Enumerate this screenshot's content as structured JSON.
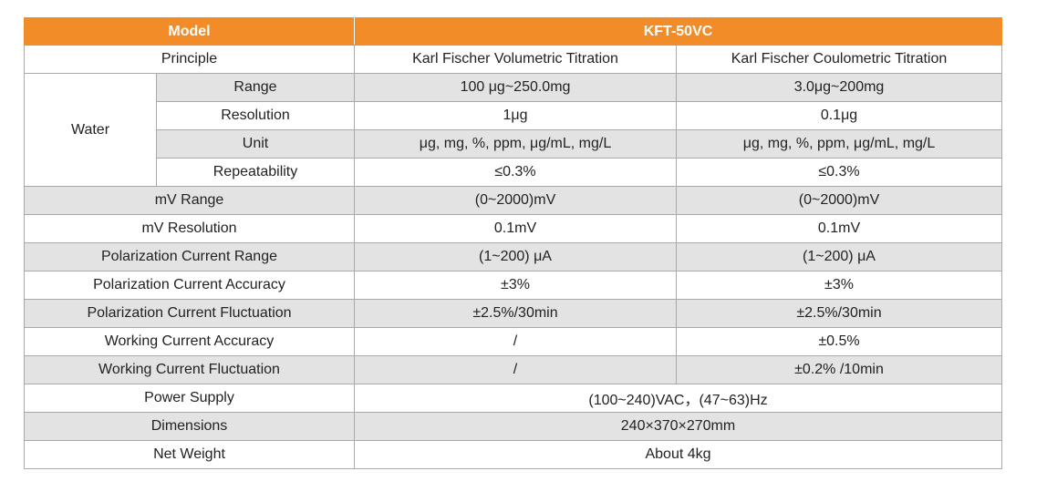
{
  "header": {
    "model_label": "Model",
    "model_value": "KFT-50VC"
  },
  "principle": {
    "label": "Principle",
    "volumetric": "Karl Fischer Volumetric Titration",
    "coulometric": "Karl Fischer Coulometric Titration"
  },
  "water": {
    "label": "Water",
    "rows": [
      {
        "label": "Range",
        "volumetric": "100 μg~250.0mg",
        "coulometric": "3.0μg~200mg"
      },
      {
        "label": "Resolution",
        "volumetric": "1μg",
        "coulometric": "0.1μg"
      },
      {
        "label": "Unit",
        "volumetric": "μg, mg, %, ppm, μg/mL, mg/L",
        "coulometric": "μg, mg, %, ppm, μg/mL, mg/L"
      },
      {
        "label": "Repeatability",
        "volumetric": "≤0.3%",
        "coulometric": "≤0.3%"
      }
    ]
  },
  "rows": [
    {
      "label": "mV Range",
      "volumetric": "(0~2000)mV",
      "coulometric": "(0~2000)mV"
    },
    {
      "label": "mV Resolution",
      "volumetric": "0.1mV",
      "coulometric": "0.1mV"
    },
    {
      "label": "Polarization Current Range",
      "volumetric": "(1~200) μA",
      "coulometric": "(1~200) μA"
    },
    {
      "label": "Polarization Current Accuracy",
      "volumetric": "±3%",
      "coulometric": "±3%"
    },
    {
      "label": "Polarization Current Fluctuation",
      "volumetric": "±2.5%/30min",
      "coulometric": "±2.5%/30min"
    },
    {
      "label": "Working Current Accuracy",
      "volumetric": "/",
      "coulometric": "±0.5%"
    },
    {
      "label": "Working Current Fluctuation",
      "volumetric": "/",
      "coulometric": "±0.2% /10min"
    }
  ],
  "shared_rows": [
    {
      "label": "Power Supply",
      "value": "(100~240)VAC，(47~63)Hz"
    },
    {
      "label": "Dimensions",
      "value": "240×370×270mm"
    },
    {
      "label": "Net Weight",
      "value": "About 4kg"
    }
  ],
  "colors": {
    "header_bg": "#f28c28",
    "stripe": "#e3e3e3",
    "border": "#a9a9a9"
  }
}
